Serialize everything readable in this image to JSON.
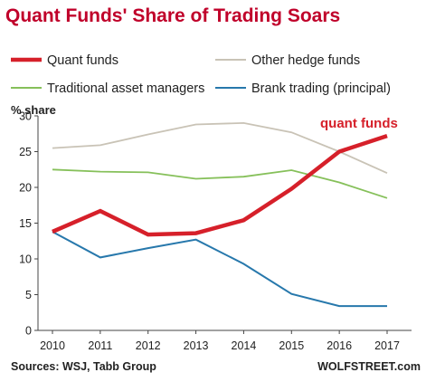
{
  "chart_data": {
    "type": "line",
    "title": "Quant Funds' Share of Trading Soars",
    "ylabel": "% share",
    "xlabel": "",
    "x": [
      "2010",
      "2011",
      "2012",
      "2013",
      "2014",
      "2015",
      "2016",
      "2017"
    ],
    "ylim": [
      0,
      30
    ],
    "yticks": [
      "0",
      "5",
      "10",
      "15",
      "20",
      "25",
      "30"
    ],
    "grid": false,
    "legend": "top",
    "series": [
      {
        "name": "Quant funds",
        "color": "#d6202a",
        "values": [
          13.8,
          16.7,
          13.4,
          13.6,
          15.4,
          19.8,
          25.0,
          27.2
        ]
      },
      {
        "name": "Other hedge funds",
        "color": "#c9c3b6",
        "values": [
          25.5,
          25.9,
          27.4,
          28.8,
          29.0,
          27.7,
          25.0,
          22.0
        ]
      },
      {
        "name": "Traditional asset managers",
        "color": "#86c05a",
        "values": [
          22.5,
          22.2,
          22.1,
          21.2,
          21.5,
          22.4,
          20.7,
          18.5
        ]
      },
      {
        "name": "Brank trading (principal)",
        "color": "#2778ac",
        "values": [
          13.8,
          10.2,
          11.5,
          12.7,
          9.3,
          5.1,
          3.4,
          3.4
        ]
      }
    ],
    "annotation": "quant funds",
    "source": "Sources: WSJ, Tabb Group",
    "brand": "WOLFSTREET.com"
  }
}
